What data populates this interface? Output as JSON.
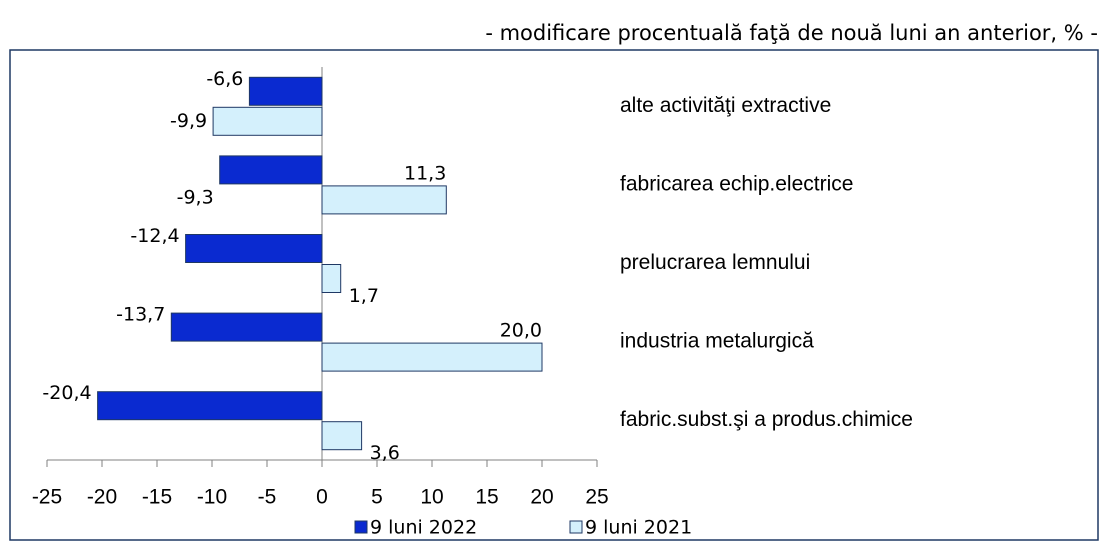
{
  "chart_data": {
    "type": "bar",
    "orientation": "horizontal",
    "subtitle": "- modificare procentuală faţă de nouă luni an anterior, % -",
    "categories": [
      "alte activităţi extractive",
      "fabricarea echip.electrice",
      "prelucrarea lemnului",
      "industria metalurgică",
      "fabric.subst.şi a produs.chimice"
    ],
    "series": [
      {
        "name": "9 luni 2022",
        "color": "#0a2ad0",
        "values": [
          -6.6,
          -9.3,
          -12.4,
          -13.7,
          -20.4
        ],
        "value_labels": [
          "-6,6",
          "-9,3",
          "-12,4",
          "-13,7",
          "-20,4"
        ]
      },
      {
        "name": "9 luni 2021",
        "color": "#d4f0fc",
        "values": [
          -9.9,
          11.3,
          1.7,
          20.0,
          3.6
        ],
        "value_labels": [
          "-9,9",
          "11,3",
          "1,7",
          "20,0",
          "3,6"
        ]
      }
    ],
    "xlim": [
      -25,
      25
    ],
    "xticks": [
      -25,
      -20,
      -15,
      -10,
      -5,
      0,
      5,
      10,
      15,
      20,
      25
    ],
    "legend": "bottom"
  }
}
